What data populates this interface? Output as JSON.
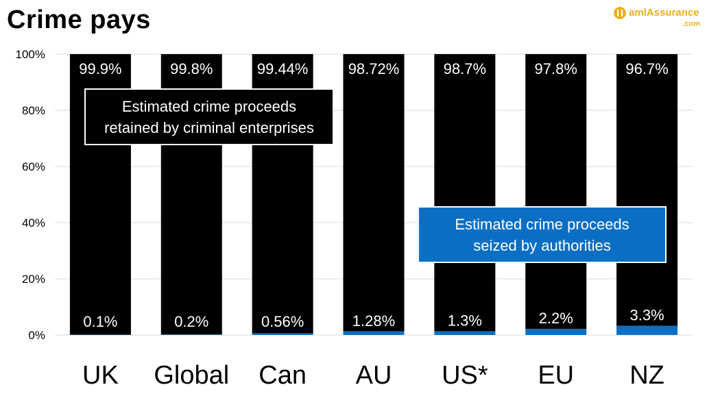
{
  "title": "Crime pays",
  "logo": {
    "main": "amlAssurance",
    "sub": ".com",
    "icon": "aml-logo-icon"
  },
  "callouts": {
    "retained": [
      "Estimated crime proceeds",
      "retained by criminal enterprises"
    ],
    "seized": [
      "Estimated crime proceeds",
      "seized by authorities"
    ]
  },
  "colors": {
    "retained": "#000000",
    "seized": "#0a6fc4",
    "grid": "#d9d9d9"
  },
  "chart_data": {
    "type": "bar",
    "stacked": true,
    "title": "Crime pays",
    "xlabel": "",
    "ylabel": "",
    "ylim": [
      0,
      100
    ],
    "yticks": [
      0,
      20,
      40,
      60,
      80,
      100
    ],
    "ytick_labels": [
      "0%",
      "20%",
      "40%",
      "60%",
      "80%",
      "100%"
    ],
    "categories": [
      "UK",
      "Global",
      "Can",
      "AU",
      "US*",
      "EU",
      "NZ"
    ],
    "series": [
      {
        "name": "Estimated crime proceeds seized by authorities",
        "values": [
          0.1,
          0.2,
          0.56,
          1.28,
          1.3,
          2.2,
          3.3
        ],
        "labels": [
          "0.1%",
          "0.2%",
          "0.56%",
          "1.28%",
          "1.3%",
          "2.2%",
          "3.3%"
        ]
      },
      {
        "name": "Estimated crime proceeds retained by criminal enterprises",
        "values": [
          99.9,
          99.8,
          99.44,
          98.72,
          98.7,
          97.8,
          96.7
        ],
        "labels": [
          "99.9%",
          "99.8%",
          "99.44%",
          "98.72%",
          "98.7%",
          "97.8%",
          "96.7%"
        ]
      }
    ],
    "legend": "inline-callouts",
    "grid": true
  }
}
